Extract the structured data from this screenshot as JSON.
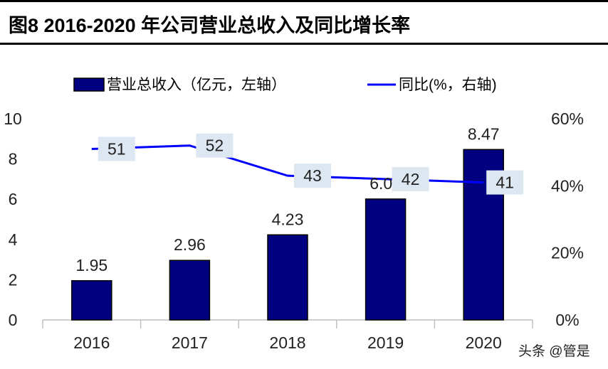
{
  "title": "图8   2016-2020 年公司营业总收入及同比增长率",
  "watermark": "头条 @管是",
  "chart_data": {
    "type": "bar+line",
    "categories": [
      "2016",
      "2017",
      "2018",
      "2019",
      "2020"
    ],
    "series": [
      {
        "name": "营业总收入（亿元，左轴）",
        "type": "bar",
        "axis": "left",
        "values": [
          1.95,
          2.96,
          4.23,
          6.01,
          8.47
        ],
        "color": "#000080"
      },
      {
        "name": "同比(%，右轴)",
        "type": "line",
        "axis": "right",
        "values": [
          51,
          52,
          43,
          42,
          41
        ],
        "color": "#0000ff"
      }
    ],
    "left_axis": {
      "range": [
        0,
        10
      ],
      "ticks": [
        "0",
        "2",
        "4",
        "6",
        "8",
        "10"
      ]
    },
    "right_axis": {
      "range": [
        0,
        60
      ],
      "ticks": [
        "0%",
        "20%",
        "40%",
        "60%"
      ]
    },
    "data_labels_bar": [
      "1.95",
      "2.96",
      "4.23",
      "6.01",
      "8.47"
    ],
    "data_labels_line": [
      "51",
      "52",
      "43",
      "42",
      "41"
    ],
    "label_box_color": "#dde7f1",
    "grid": false,
    "legend_position": "top"
  }
}
